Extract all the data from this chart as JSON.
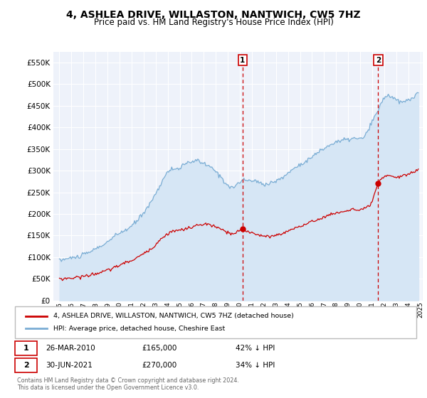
{
  "title": "4, ASHLEA DRIVE, WILLASTON, NANTWICH, CW5 7HZ",
  "subtitle": "Price paid vs. HM Land Registry's House Price Index (HPI)",
  "title_fontsize": 10,
  "subtitle_fontsize": 8.5,
  "background_color": "#ffffff",
  "plot_bg_color": "#eef2fa",
  "grid_color": "#ffffff",
  "hpi_color": "#7aadd4",
  "hpi_fill_color": "#d6e6f5",
  "price_color": "#cc0000",
  "ylim": [
    0,
    575000
  ],
  "yticks": [
    0,
    50000,
    100000,
    150000,
    200000,
    250000,
    300000,
    350000,
    400000,
    450000,
    500000,
    550000
  ],
  "ytick_labels": [
    "£0",
    "£50K",
    "£100K",
    "£150K",
    "£200K",
    "£250K",
    "£300K",
    "£350K",
    "£400K",
    "£450K",
    "£500K",
    "£550K"
  ],
  "xmin_year": 1995,
  "xmax_year": 2025,
  "xtick_years": [
    1995,
    1996,
    1997,
    1998,
    1999,
    2000,
    2001,
    2002,
    2003,
    2004,
    2005,
    2006,
    2007,
    2008,
    2009,
    2010,
    2011,
    2012,
    2013,
    2014,
    2015,
    2016,
    2017,
    2018,
    2019,
    2020,
    2021,
    2022,
    2023,
    2024,
    2025
  ],
  "marker1_x": 2010.23,
  "marker1_y": 165000,
  "marker1_label": "1",
  "marker1_date": "26-MAR-2010",
  "marker1_price": "£165,000",
  "marker1_hpi": "42% ↓ HPI",
  "marker2_x": 2021.5,
  "marker2_y": 270000,
  "marker2_label": "2",
  "marker2_date": "30-JUN-2021",
  "marker2_price": "£270,000",
  "marker2_hpi": "34% ↓ HPI",
  "legend_label1": "4, ASHLEA DRIVE, WILLASTON, NANTWICH, CW5 7HZ (detached house)",
  "legend_label2": "HPI: Average price, detached house, Cheshire East",
  "footer": "Contains HM Land Registry data © Crown copyright and database right 2024.\nThis data is licensed under the Open Government Licence v3.0."
}
